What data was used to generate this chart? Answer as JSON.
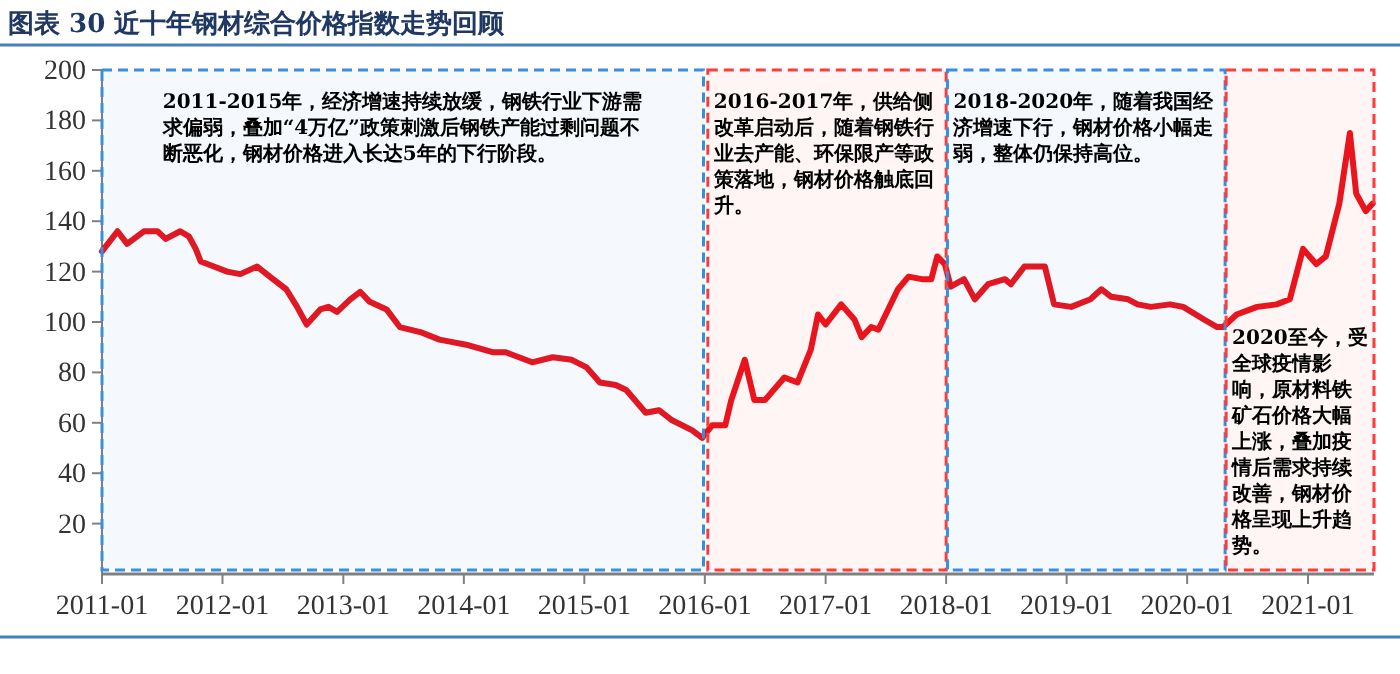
{
  "chart_data": {
    "type": "line",
    "title": "图表 30  近十年钢材综合价格指数走势回顾",
    "x": [
      "2011-01-01",
      "2011-02-17",
      "2011-03-18",
      "2011-05-08",
      "2011-06-18",
      "2011-07-13",
      "2011-08-26",
      "2011-09-21",
      "2011-10-12",
      "2011-10-27",
      "2011-12-06",
      "2012-01-15",
      "2012-02-24",
      "2012-04-15",
      "2012-06-02",
      "2012-07-12",
      "2012-08-14",
      "2012-09-12",
      "2012-10-23",
      "2012-11-17",
      "2012-12-13",
      "2013-01-22",
      "2013-02-21",
      "2013-03-22",
      "2013-05-12",
      "2013-06-21",
      "2013-08-22",
      "2013-10-19",
      "2013-11-28",
      "2014-01-08",
      "2014-03-29",
      "2014-05-08",
      "2014-07-27",
      "2014-09-27",
      "2014-11-24",
      "2015-01-08",
      "2015-02-17",
      "2015-04-06",
      "2015-05-08",
      "2015-07-06",
      "2015-08-15",
      "2015-09-24",
      "2015-11-24",
      "2015-12-24",
      "2016-01-23",
      "2016-03-03",
      "2016-03-21",
      "2016-05-01",
      "2016-05-30",
      "2016-07-01",
      "2016-08-29",
      "2016-10-08",
      "2016-11-17",
      "2016-12-09",
      "2017-01-01",
      "2017-02-17",
      "2017-03-29",
      "2017-04-20",
      "2017-05-19",
      "2017-06-10",
      "2017-08-08",
      "2017-09-09",
      "2017-10-19",
      "2017-11-17",
      "2017-12-05",
      "2017-12-28",
      "2018-01-15",
      "2018-02-24",
      "2018-03-29",
      "2018-05-08",
      "2018-06-28",
      "2018-07-16",
      "2018-08-26",
      "2018-10-27",
      "2018-11-24",
      "2019-01-15",
      "2019-03-14",
      "2019-04-16",
      "2019-05-16",
      "2019-07-06",
      "2019-08-04",
      "2019-09-13",
      "2019-11-10",
      "2019-12-20",
      "2020-02-21",
      "2020-04-01",
      "2020-04-19",
      "2020-05-30",
      "2020-07-31",
      "2020-09-28",
      "2020-11-07",
      "2020-12-17",
      "2021-01-26",
      "2021-02-24",
      "2021-04-06",
      "2021-05-08",
      "2021-05-27",
      "2021-06-25",
      "2021-07-16"
    ],
    "series": [
      {
        "color": "#e8121b",
        "values": [
          128,
          136,
          131,
          136,
          136,
          133,
          136,
          134,
          129,
          124,
          122,
          120,
          119,
          122,
          117,
          113,
          106,
          99,
          105,
          106,
          104,
          109,
          112,
          108,
          105,
          98,
          96,
          93,
          92,
          91,
          88,
          88,
          84,
          86,
          85,
          82,
          76,
          75,
          73,
          64,
          65,
          61,
          57,
          54,
          59,
          59,
          69,
          85,
          69,
          69,
          78,
          76,
          89,
          103,
          99,
          107,
          101,
          94,
          98,
          97,
          113,
          118,
          117,
          117,
          126,
          123,
          114,
          117,
          109,
          115,
          117,
          115,
          122,
          122,
          107,
          106,
          109,
          113,
          110,
          109,
          107,
          106,
          107,
          106,
          101,
          98,
          98,
          103,
          106,
          107,
          109,
          129,
          123,
          126,
          147,
          175,
          151,
          144,
          147
        ]
      }
    ],
    "xlim": [
      "2011-01-01",
      "2021-07-20"
    ],
    "xticks": [
      "2011-01",
      "2012-01",
      "2013-01",
      "2014-01",
      "2015-01",
      "2016-01",
      "2017-01",
      "2018-01",
      "2019-01",
      "2020-01",
      "2021-01"
    ],
    "ylim": [
      0,
      200
    ],
    "yticks": [
      20,
      40,
      60,
      80,
      100,
      120,
      140,
      160,
      180,
      200
    ],
    "marker": "none",
    "line_style": "solid",
    "bands": [
      {
        "axis": "x",
        "from": "2011-01-01",
        "to": "2015-12-28",
        "color": "#3a8fdc",
        "label": "2011-2015年，经济增速持续放缓，钢铁行业下游需求偏弱，叠加“4万亿”政策刺激后钢铁产能过剩问题不断恶化，钢材价格进入长达5年的下行阶段。"
      },
      {
        "axis": "x",
        "from": "2016-01-10",
        "to": "2018-01-01",
        "color": "#ff3b3b",
        "label": "2016-2017年，供给侧改革启动后，随着钢铁行业去产能、环保限产等政策落地，钢材价格触底回升。"
      },
      {
        "axis": "x",
        "from": "2018-01-05",
        "to": "2020-04-25",
        "color": "#3a8fdc",
        "label": "2018-2020年，随着我国经济增速下行，钢材价格小幅走弱，整体仍保持高位。"
      },
      {
        "axis": "x",
        "from": "2020-04-28",
        "to": "2021-07-20",
        "color": "#ff3b3b",
        "label": "2020至今，受全球疫情影响，原材料铁矿石价格大幅上涨，叠加疫情后需求持续改善，钢材价格呈现上升趋势。"
      }
    ]
  }
}
